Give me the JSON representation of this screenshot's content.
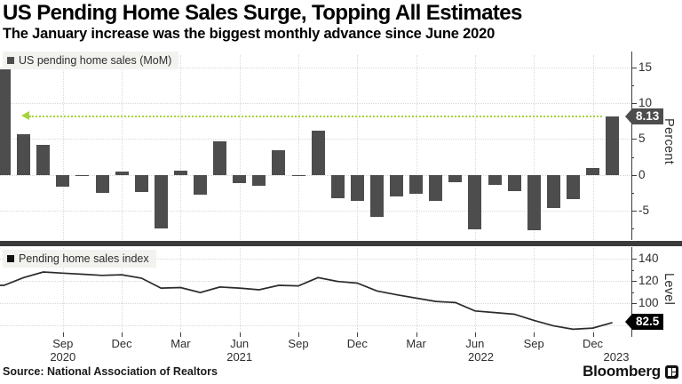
{
  "header": {
    "title": "US Pending Home Sales Surge, Topping All Estimates",
    "subtitle": "The January increase was the biggest monthly advance since June 2020"
  },
  "colors": {
    "bar": "#4d4d4d",
    "line": "#2b2b2b",
    "accent_green": "#a6d23c",
    "badge_top_bg": "#4d4d4d",
    "badge_bottom_bg": "#000000",
    "grid": "#d8d8d8",
    "legend_bg": "#f2f2ef"
  },
  "chart_data": [
    {
      "type": "bar",
      "legend": "US pending home sales (MoM)",
      "ylabel": "Percent",
      "categories": [
        "Jun 2020",
        "Jul 2020",
        "Aug 2020",
        "Sep 2020",
        "Oct 2020",
        "Nov 2020",
        "Dec 2020",
        "Jan 2021",
        "Feb 2021",
        "Mar 2021",
        "Apr 2021",
        "May 2021",
        "Jun 2021",
        "Jul 2021",
        "Aug 2021",
        "Sep 2021",
        "Oct 2021",
        "Nov 2021",
        "Dec 2021",
        "Jan 2022",
        "Feb 2022",
        "Mar 2022",
        "Apr 2022",
        "May 2022",
        "Jun 2022",
        "Jul 2022",
        "Aug 2022",
        "Sep 2022",
        "Oct 2022",
        "Nov 2022",
        "Dec 2022",
        "Jan 2023"
      ],
      "values": [
        14.8,
        5.7,
        4.2,
        -1.6,
        -0.2,
        -2.5,
        0.4,
        -2.4,
        -7.5,
        0.6,
        -2.8,
        4.7,
        -1.1,
        -1.5,
        3.4,
        -0.1,
        6.2,
        -3.3,
        -3.6,
        -5.9,
        -3.0,
        -2.7,
        -3.7,
        -1.0,
        -7.6,
        -1.4,
        -2.3,
        -7.8,
        -4.6,
        -3.4,
        1.0,
        8.13
      ],
      "yticks": [
        15,
        10,
        5,
        0,
        -5
      ],
      "yticks_minor": [
        12.5,
        7.5,
        2.5,
        -2.5,
        -7.5
      ],
      "ylim": [
        -9.3,
        16.7
      ],
      "grid": "dotted",
      "annotation": {
        "level": 8.13,
        "label": "8.13",
        "style": "green-dotted-arrow-pointing-left"
      }
    },
    {
      "type": "line",
      "legend": "Pending home sales index",
      "ylabel": "Level",
      "categories": [
        "Jun 2020",
        "Jul 2020",
        "Aug 2020",
        "Sep 2020",
        "Oct 2020",
        "Nov 2020",
        "Dec 2020",
        "Jan 2021",
        "Feb 2021",
        "Mar 2021",
        "Apr 2021",
        "May 2021",
        "Jun 2021",
        "Jul 2021",
        "Aug 2021",
        "Sep 2021",
        "Oct 2021",
        "Nov 2021",
        "Dec 2021",
        "Jan 2022",
        "Feb 2022",
        "Mar 2022",
        "Apr 2022",
        "May 2022",
        "Jun 2022",
        "Jul 2022",
        "Aug 2022",
        "Sep 2022",
        "Oct 2022",
        "Nov 2022",
        "Dec 2022",
        "Jan 2023"
      ],
      "values": [
        116,
        123,
        128,
        127,
        126,
        125,
        125.5,
        122.5,
        113.5,
        114,
        109.5,
        114.5,
        113.5,
        112,
        116,
        115.5,
        123,
        119.5,
        118,
        111,
        107.5,
        104.5,
        101.5,
        100.5,
        93,
        91.5,
        90,
        84.5,
        79.5,
        76.5,
        77.5,
        82.5
      ],
      "yticks": [
        140,
        120,
        100
      ],
      "yticks_minor": [
        130,
        110,
        90
      ],
      "gridlines": [
        140,
        120,
        100,
        80
      ],
      "ylim": [
        73,
        150
      ],
      "grid": "dotted",
      "end_label": {
        "value": 82.5,
        "label": "82.5"
      }
    }
  ],
  "xaxis": {
    "tick_labels": [
      {
        "label": "Sep",
        "index": 3
      },
      {
        "label": "Dec",
        "index": 6
      },
      {
        "label": "Mar",
        "index": 9
      },
      {
        "label": "Jun",
        "index": 12
      },
      {
        "label": "Sep",
        "index": 15
      },
      {
        "label": "Dec",
        "index": 18
      },
      {
        "label": "Mar",
        "index": 21
      },
      {
        "label": "Jun",
        "index": 24
      },
      {
        "label": "Sep",
        "index": 27
      },
      {
        "label": "Dec",
        "index": 30
      }
    ],
    "year_labels": [
      {
        "label": "2020",
        "center_index": 3
      },
      {
        "label": "2021",
        "center_index": 12
      },
      {
        "label": "2022",
        "center_index": 24.3
      },
      {
        "label": "2023",
        "center_index": 31.2
      }
    ]
  },
  "footer": {
    "source": "Source: National Association of Realtors",
    "brand": "Bloomberg"
  }
}
